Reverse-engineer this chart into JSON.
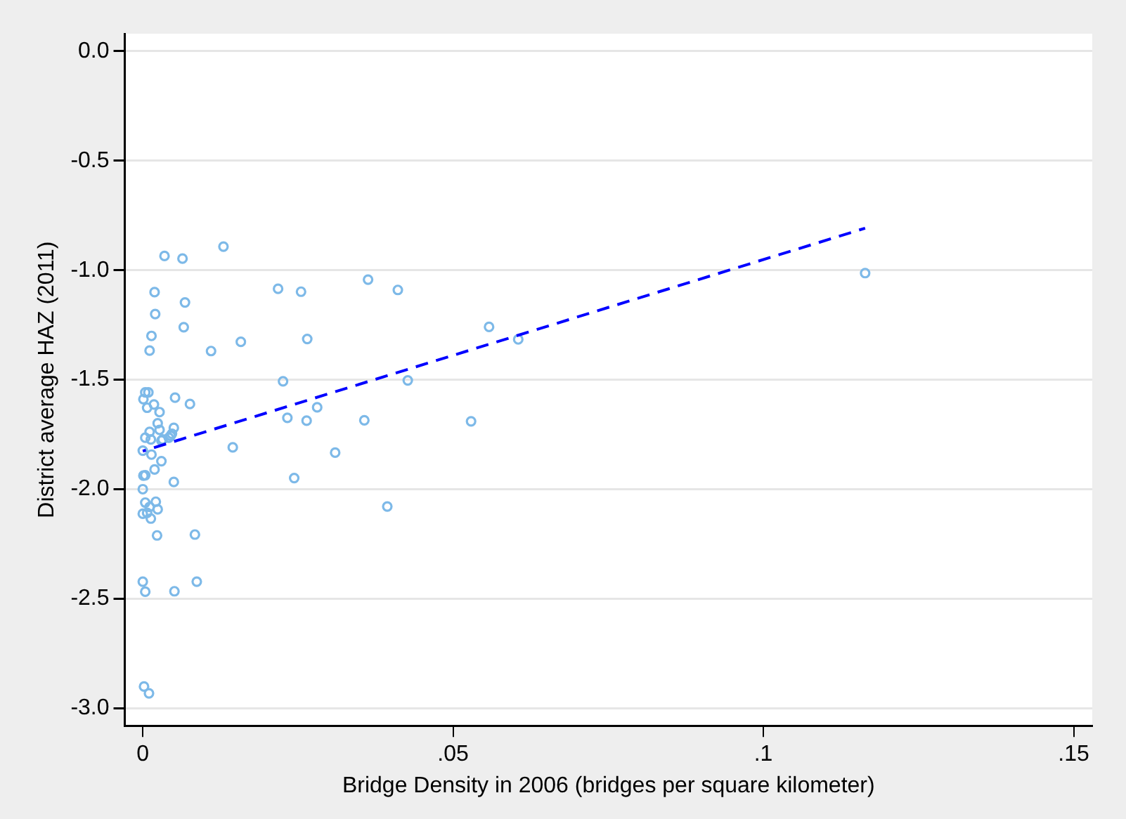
{
  "chart_data": {
    "type": "scatter",
    "xlabel": "Bridge Density in 2006 (bridges per square kilometer)",
    "ylabel": "District average HAZ (2011)",
    "xlim": [
      -0.0029,
      0.153
    ],
    "xticks": [
      0,
      {
        "value": 0.05,
        "label": ".05"
      },
      {
        "value": 0.1,
        "label": ".1"
      },
      {
        "value": 0.15,
        "label": ".15"
      }
    ],
    "ylim": [
      -3.08,
      0.08
    ],
    "yticks": [
      {
        "value": 0,
        "label": "0.0"
      },
      -0.5,
      {
        "value": -1,
        "label": "-1.0"
      },
      -1.5,
      {
        "value": -2,
        "label": "-2.0"
      },
      -2.5,
      {
        "value": -3,
        "label": "-3.0"
      }
    ],
    "grid": "y",
    "legend": false,
    "series": [
      {
        "color": "#7db9e8",
        "marker": "circle",
        "x": [
          0.0035,
          0.0064,
          0.013,
          0.0019,
          0.002,
          0.0068,
          0.0014,
          0.0066,
          0.0011,
          0.011,
          0.0158,
          0.0218,
          0.0255,
          0.0363,
          0.0411,
          0.0265,
          0.0226,
          0.0427,
          0.0558,
          0.0605,
          0.1164,
          0.0529,
          0.0233,
          0.0264,
          0.0281,
          0.0357,
          0.0052,
          0.0076,
          0.0004,
          0.0009,
          0.0001,
          0.0007,
          0.0018,
          0.0027,
          0.0024,
          0.0011,
          0.0027,
          0.0004,
          0.0013,
          0.0032,
          0.0045,
          0.005,
          0.0042,
          0,
          0.0014,
          0.003,
          0.0145,
          0.031,
          0.0244,
          0.0394,
          0.005,
          0.0019,
          0.0001,
          0.0004,
          0,
          0.0004,
          0.0021,
          0.0024,
          0,
          0.0007,
          0.0011,
          0.0013,
          0.0023,
          0.0084,
          0,
          0.0004,
          0.0051,
          0.0087,
          0.0002,
          0.001,
          0.003,
          0.0047
        ],
        "values": [
          -0.935,
          -0.947,
          -0.892,
          -1.1,
          -1.2,
          -1.147,
          -1.3,
          -1.26,
          -1.367,
          -1.369,
          -1.327,
          -1.085,
          -1.098,
          -1.043,
          -1.09,
          -1.314,
          -1.507,
          -1.503,
          -1.259,
          -1.316,
          -1.013,
          -1.69,
          -1.674,
          -1.687,
          -1.626,
          -1.685,
          -1.582,
          -1.611,
          -1.558,
          -1.558,
          -1.589,
          -1.628,
          -1.613,
          -1.648,
          -1.699,
          -1.738,
          -1.729,
          -1.765,
          -1.773,
          -1.773,
          -1.756,
          -1.72,
          -1.765,
          -1.824,
          -1.842,
          -1.872,
          -1.809,
          -1.833,
          -1.949,
          -2.079,
          -1.967,
          -1.91,
          -1.938,
          -1.936,
          -2,
          -2.061,
          -2.057,
          -2.092,
          -2.112,
          -2.108,
          -2.081,
          -2.134,
          -2.211,
          -2.207,
          -2.422,
          -2.468,
          -2.466,
          -2.422,
          -2.901,
          -2.932,
          -1.778,
          -1.747
        ]
      },
      {
        "type": "line",
        "color": "#0000ff",
        "line_style": "dashed",
        "marker": "none",
        "x": [
          0,
          0.1164
        ],
        "values": [
          -1.826,
          -0.808
        ]
      }
    ]
  }
}
